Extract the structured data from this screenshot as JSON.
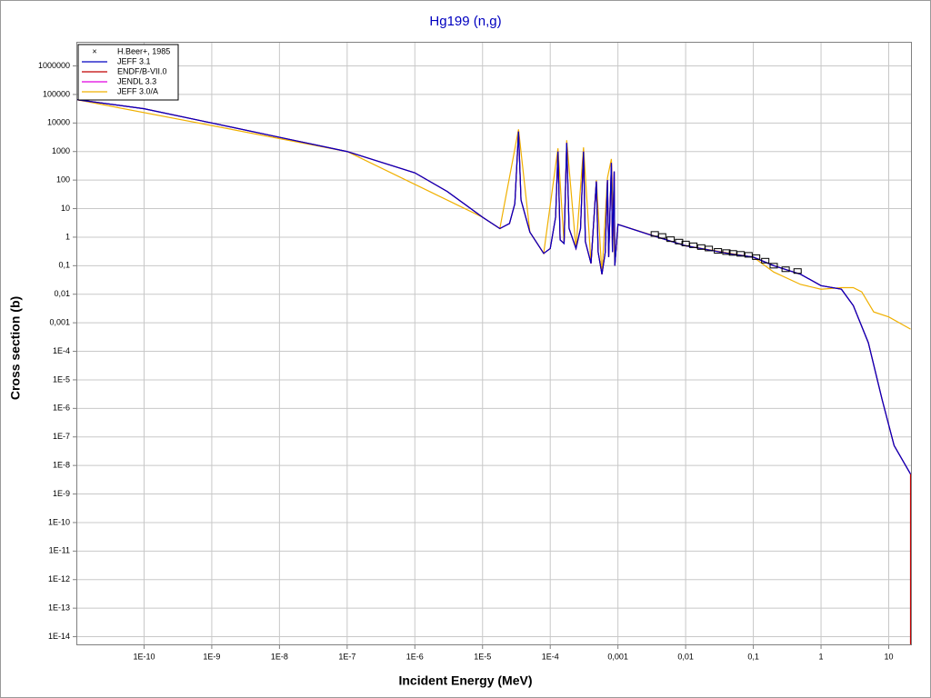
{
  "chart_data": {
    "type": "line",
    "title": "Hg199 (n,g)",
    "x_label": "Incident Energy (MeV)",
    "y_label": "Cross section (b)",
    "x_log": true,
    "y_log": true,
    "grid": true,
    "legend": "top-left",
    "xlim": [
      1e-11,
      22
    ],
    "ylim": [
      5e-15,
      7000000
    ],
    "xticks": [
      {
        "value": 1e-10,
        "label": "1E-10"
      },
      {
        "value": 1e-09,
        "label": "1E-9"
      },
      {
        "value": 1e-08,
        "label": "1E-8"
      },
      {
        "value": 1e-07,
        "label": "1E-7"
      },
      {
        "value": 1e-06,
        "label": "1E-6"
      },
      {
        "value": 1e-05,
        "label": "1E-5"
      },
      {
        "value": 0.0001,
        "label": "1E-4"
      },
      {
        "value": 0.001,
        "label": "0,001"
      },
      {
        "value": 0.01,
        "label": "0,01"
      },
      {
        "value": 0.1,
        "label": "0,1"
      },
      1,
      10
    ],
    "yticks": [
      1000000,
      100000,
      10000,
      1000,
      100,
      10,
      1,
      {
        "value": 0.1,
        "label": "0,1"
      },
      {
        "value": 0.01,
        "label": "0,01"
      },
      {
        "value": 0.001,
        "label": "0,001"
      },
      {
        "value": 0.0001,
        "label": "1E-4"
      },
      {
        "value": 1e-05,
        "label": "1E-5"
      },
      {
        "value": 1e-06,
        "label": "1E-6"
      },
      {
        "value": 1e-07,
        "label": "1E-7"
      },
      {
        "value": 1e-08,
        "label": "1E-8"
      },
      {
        "value": 1e-09,
        "label": "1E-9"
      },
      {
        "value": 1e-10,
        "label": "1E-10"
      },
      {
        "value": 1e-11,
        "label": "1E-11"
      },
      {
        "value": 1e-12,
        "label": "1E-12"
      },
      {
        "value": 1e-13,
        "label": "1E-13"
      },
      {
        "value": 1e-14,
        "label": "1E-14"
      }
    ],
    "series": [
      {
        "name": "H.Beer+, 1985",
        "color": "#000000",
        "style": "markers",
        "x": [
          0.0035,
          0.0045,
          0.006,
          0.008,
          0.01,
          0.013,
          0.017,
          0.022,
          0.03,
          0.04,
          0.05,
          0.065,
          0.085,
          0.11,
          0.15,
          0.2,
          0.3,
          0.45
        ],
        "values": [
          1.3,
          1.1,
          0.85,
          0.7,
          0.6,
          0.52,
          0.45,
          0.4,
          0.33,
          0.3,
          0.28,
          0.26,
          0.24,
          0.2,
          0.15,
          0.1,
          0.075,
          0.065
        ]
      },
      {
        "name": "JEFF 3.1",
        "color": "#0000c0",
        "style": "line",
        "x": [
          1e-11,
          1e-10,
          1e-09,
          1e-08,
          1e-07,
          1e-06,
          3e-06,
          1e-05,
          1.8e-05,
          2.5e-05,
          3e-05,
          3.4e-05,
          3.7e-05,
          5e-05,
          8e-05,
          0.0001,
          0.00012,
          0.00013,
          0.00014,
          0.00016,
          0.000175,
          0.00019,
          0.00024,
          0.00028,
          0.00031,
          0.00033,
          0.0004,
          0.00048,
          0.00051,
          0.00058,
          0.00065,
          0.0007,
          0.00073,
          0.0008,
          0.00083,
          0.00088,
          0.0009,
          0.001,
          0.003,
          0.01,
          0.05,
          0.1,
          0.2,
          0.5,
          1,
          2,
          3,
          5,
          8,
          12,
          21
        ],
        "values": [
          66000,
          31600,
          10000,
          3160,
          1000,
          180,
          40,
          5,
          2,
          3,
          15,
          5000,
          20,
          1.5,
          0.27,
          0.4,
          5,
          1000,
          0.8,
          0.6,
          2000,
          2,
          0.4,
          2,
          1000,
          0.7,
          0.12,
          90,
          0.3,
          0.05,
          0.3,
          100,
          0.2,
          400,
          0.3,
          200,
          0.1,
          2.8,
          1.2,
          0.5,
          0.25,
          0.2,
          0.1,
          0.05,
          0.02,
          0.015,
          0.004,
          0.0002,
          2e-06,
          5e-08,
          5e-09
        ]
      },
      {
        "name": "ENDF/B-VII.0",
        "color": "#c00000",
        "style": "line",
        "x": [
          1e-11,
          1e-10,
          1e-09,
          1e-08,
          1e-07,
          1e-06,
          3e-06,
          1e-05,
          1.8e-05,
          2.5e-05,
          3e-05,
          3.4e-05,
          3.7e-05,
          5e-05,
          8e-05,
          0.0001,
          0.00012,
          0.00013,
          0.00014,
          0.00016,
          0.000175,
          0.00019,
          0.00024,
          0.00028,
          0.00031,
          0.00033,
          0.0004,
          0.00048,
          0.00051,
          0.00058,
          0.00065,
          0.0007,
          0.00073,
          0.0008,
          0.00083,
          0.00088,
          0.0009,
          0.001,
          0.003,
          0.01,
          0.05,
          0.1,
          0.2,
          0.5,
          1,
          2,
          3,
          5,
          8,
          12,
          21,
          21
        ],
        "values": [
          66000,
          31600,
          10000,
          3160,
          1000,
          180,
          40,
          5,
          2,
          3,
          15,
          5000,
          20,
          1.5,
          0.27,
          0.4,
          5,
          1000,
          0.8,
          0.6,
          2000,
          2,
          0.4,
          2,
          1000,
          0.7,
          0.12,
          90,
          0.3,
          0.05,
          0.3,
          100,
          0.2,
          400,
          0.3,
          200,
          0.1,
          2.8,
          1.2,
          0.5,
          0.25,
          0.2,
          0.1,
          0.05,
          0.02,
          0.015,
          0.004,
          0.0002,
          2e-06,
          5e-08,
          5e-09,
          5e-15
        ]
      },
      {
        "name": "JENDL 3.3",
        "color": "#e000e0",
        "style": "line",
        "x": [
          1e-11,
          1e-10,
          1e-09,
          1e-08,
          1e-07,
          1e-06,
          3e-06,
          1e-05,
          1.8e-05,
          2.5e-05,
          3e-05,
          3.4e-05,
          3.7e-05,
          5e-05,
          8e-05,
          0.0001,
          0.00012,
          0.00013,
          0.00014,
          0.00016,
          0.000175,
          0.00019,
          0.00024,
          0.00028,
          0.00031,
          0.00033,
          0.0004,
          0.00048,
          0.00051,
          0.00058,
          0.00065,
          0.0007,
          0.00073,
          0.0008,
          0.00083,
          0.00088,
          0.0009,
          0.001,
          0.003,
          0.01,
          0.05,
          0.1,
          0.2,
          0.5,
          1,
          2,
          3,
          5,
          8,
          12,
          21
        ],
        "values": [
          66000,
          31600,
          10000,
          3160,
          1000,
          180,
          40,
          5,
          2,
          3,
          15,
          5000,
          20,
          1.5,
          0.27,
          0.4,
          5,
          1000,
          0.8,
          0.6,
          2000,
          2,
          0.4,
          2,
          1000,
          0.7,
          0.12,
          90,
          0.3,
          0.05,
          0.3,
          100,
          0.2,
          400,
          0.3,
          200,
          0.1,
          2.8,
          1.2,
          0.5,
          0.25,
          0.2,
          0.1,
          0.05,
          0.02,
          0.015,
          0.004,
          0.0002,
          2e-06,
          5e-08,
          5e-09
        ]
      },
      {
        "name": "JEFF 3.0/A",
        "color": "#f0b000",
        "style": "line",
        "x": [
          1e-11,
          1e-07,
          1e-05,
          1.8e-05,
          3.4e-05,
          5e-05,
          8e-05,
          0.00013,
          0.00016,
          0.000175,
          0.00024,
          0.00031,
          0.0004,
          0.00048,
          0.00058,
          0.0007,
          0.0008,
          0.0009,
          0.001,
          0.01,
          0.1,
          0.2,
          0.5,
          1,
          2,
          3,
          4,
          6,
          10,
          21
        ],
        "values": [
          66000,
          1000,
          5,
          2,
          6000,
          1.5,
          0.27,
          1300,
          0.6,
          2500,
          0.4,
          1400,
          0.12,
          100,
          0.05,
          120,
          550,
          0.1,
          2.8,
          0.5,
          0.2,
          0.06,
          0.022,
          0.015,
          0.017,
          0.017,
          0.012,
          0.0024,
          0.0016,
          0.0006
        ]
      }
    ]
  }
}
